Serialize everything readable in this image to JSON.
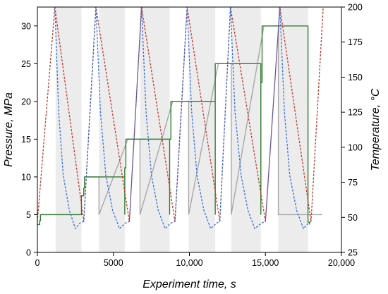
{
  "chart_data": {
    "type": "line",
    "xlabel": "Experiment time, s",
    "ylabel_left": "Pressure, MPa",
    "ylabel_right": "Temperature, °C",
    "xlim": [
      0,
      20000
    ],
    "ylim_left": [
      0,
      32.5
    ],
    "ylim_right": [
      25,
      200
    ],
    "x_ticks": [
      0,
      5000,
      10000,
      15000,
      20000
    ],
    "x_tick_labels": [
      "0",
      "5000",
      "10,000",
      "15,000",
      "20,000"
    ],
    "y_left_ticks": [
      0,
      5,
      10,
      15,
      20,
      25,
      30
    ],
    "y_left_tick_labels": [
      "0",
      "5",
      "10",
      "15",
      "20",
      "25",
      "30"
    ],
    "y_right_ticks": [
      25,
      50,
      75,
      100,
      125,
      150,
      175,
      200
    ],
    "y_right_tick_labels": [
      "25",
      "50",
      "75",
      "100",
      "125",
      "150",
      "175",
      "200"
    ],
    "grid": false,
    "colors": {
      "pressure": "#2e7d2e",
      "temperature_heating": "#c0392b",
      "temperature_cooling": "#3a6fd8",
      "reference": "#a8a8a8",
      "shade": "#ececec"
    },
    "shaded_intervals": [
      [
        1200,
        2900
      ],
      [
        4050,
        5750
      ],
      [
        6750,
        8700
      ],
      [
        9950,
        11700
      ],
      [
        12750,
        14700
      ],
      [
        15850,
        17800
      ]
    ],
    "series": [
      {
        "axis": "left",
        "style": "solid",
        "color_key": "pressure",
        "points": [
          [
            0,
            3.7
          ],
          [
            150,
            3.7
          ],
          [
            150,
            4.2
          ],
          [
            200,
            4.2
          ],
          [
            200,
            5
          ],
          [
            2900,
            5
          ],
          [
            2900,
            7.5
          ],
          [
            3050,
            7.5
          ],
          [
            3050,
            8.5
          ],
          [
            3100,
            8.5
          ],
          [
            3100,
            10
          ],
          [
            3200,
            10
          ],
          [
            5750,
            10
          ],
          [
            5750,
            5
          ],
          [
            5750,
            11.2
          ],
          [
            5820,
            11.2
          ],
          [
            5820,
            15
          ],
          [
            5950,
            15
          ],
          [
            8700,
            15
          ],
          [
            8700,
            5
          ],
          [
            8700,
            15
          ],
          [
            8780,
            15
          ],
          [
            8780,
            20
          ],
          [
            8900,
            20
          ],
          [
            11700,
            20
          ],
          [
            11700,
            5
          ],
          [
            11700,
            25
          ],
          [
            11900,
            25
          ],
          [
            14700,
            25
          ],
          [
            14700,
            5
          ],
          [
            14700,
            22.5
          ],
          [
            14780,
            22.5
          ],
          [
            14780,
            30
          ],
          [
            14900,
            30
          ],
          [
            17800,
            30
          ],
          [
            17800,
            5
          ],
          [
            17800,
            4
          ],
          [
            17900,
            4
          ],
          [
            17900,
            3.7
          ]
        ]
      },
      {
        "axis": "left",
        "style": "solid",
        "color_key": "reference",
        "points": [
          [
            3200,
            10
          ],
          [
            4050,
            10
          ],
          [
            4050,
            5
          ],
          [
            5950,
            15
          ],
          [
            6750,
            15
          ],
          [
            6750,
            5
          ],
          [
            8900,
            20
          ],
          [
            9950,
            20
          ],
          [
            9950,
            5
          ],
          [
            11900,
            25
          ],
          [
            12750,
            25
          ],
          [
            12750,
            5
          ],
          [
            14900,
            30
          ],
          [
            15850,
            30
          ],
          [
            15850,
            5
          ],
          [
            17900,
            5
          ],
          [
            18750,
            5
          ]
        ]
      },
      {
        "axis": "right",
        "style": "dashed",
        "color_key": "temperature_heating",
        "points": [
          [
            0,
            47
          ],
          [
            1150,
            200
          ],
          [
            3050,
            47
          ],
          [
            3850,
            200
          ],
          [
            6050,
            47
          ],
          [
            6850,
            200
          ],
          [
            9050,
            47
          ],
          [
            9850,
            200
          ],
          [
            12000,
            47
          ],
          [
            12700,
            200
          ],
          [
            15000,
            47
          ],
          [
            15950,
            200
          ],
          [
            18000,
            47
          ],
          [
            18800,
            200
          ]
        ]
      },
      {
        "axis": "right",
        "style": "dashed",
        "color_key": "temperature_cooling",
        "points": [
          [
            1150,
            200
          ],
          [
            1400,
            125
          ],
          [
            1700,
            80
          ],
          [
            2100,
            55
          ],
          [
            2500,
            42
          ],
          [
            2800,
            46
          ],
          [
            3050,
            47
          ],
          [
            3850,
            200
          ],
          [
            4150,
            125
          ],
          [
            4500,
            80
          ],
          [
            4950,
            55
          ],
          [
            5400,
            42
          ],
          [
            5800,
            46
          ],
          [
            6050,
            47
          ],
          [
            6850,
            200
          ],
          [
            7150,
            125
          ],
          [
            7500,
            80
          ],
          [
            7950,
            55
          ],
          [
            8400,
            42
          ],
          [
            8800,
            46
          ],
          [
            9050,
            47
          ],
          [
            9850,
            200
          ],
          [
            10150,
            125
          ],
          [
            10500,
            80
          ],
          [
            10950,
            55
          ],
          [
            11400,
            42
          ],
          [
            11800,
            46
          ],
          [
            12000,
            47
          ],
          [
            12700,
            200
          ],
          [
            13000,
            125
          ],
          [
            13400,
            80
          ],
          [
            13850,
            55
          ],
          [
            14300,
            42
          ],
          [
            14750,
            46
          ],
          [
            15000,
            47
          ],
          [
            15950,
            200
          ],
          [
            16250,
            125
          ],
          [
            16600,
            80
          ],
          [
            17050,
            55
          ],
          [
            17500,
            42
          ],
          [
            17850,
            46
          ],
          [
            18000,
            47
          ]
        ]
      }
    ]
  }
}
